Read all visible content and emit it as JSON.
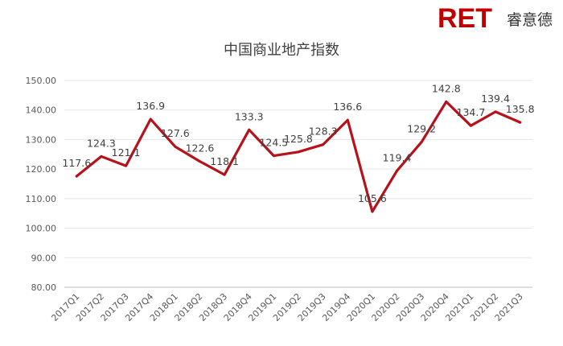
{
  "brand": {
    "logo_text": "RET",
    "logo_cn": "睿意德",
    "color": "#c00000"
  },
  "chart_data": {
    "type": "line",
    "title": "中国商业地产指数",
    "categories": [
      "2017Q1",
      "2017Q2",
      "2017Q3",
      "2017Q4",
      "2018Q1",
      "2018Q2",
      "2018Q3",
      "2018Q4",
      "2019Q1",
      "2019Q2",
      "2019Q3",
      "2019Q4",
      "2020Q1",
      "2020Q2",
      "2020Q3",
      "2020Q4",
      "2021Q1",
      "2021Q2",
      "2021Q3"
    ],
    "series": [
      {
        "values": [
          117.6,
          124.3,
          121.1,
          136.9,
          127.6,
          122.6,
          118.1,
          133.3,
          124.5,
          125.8,
          128.3,
          136.6,
          105.6,
          119.4,
          129.2,
          142.8,
          134.7,
          139.4,
          135.8
        ],
        "data_labels": [
          "117.6",
          "124.3",
          "121.1",
          "136.9",
          "127.6",
          "122.6",
          "118.1",
          "133.3",
          "124.5",
          "125.8",
          "128.3",
          "136.6",
          "105.6",
          "119.4",
          "129.2",
          "142.8",
          "134.7",
          "139.4",
          "135.8"
        ],
        "color": "#b5121b"
      }
    ],
    "ylim": [
      80,
      150
    ],
    "yticks": [
      "80.00",
      "90.00",
      "100.00",
      "110.00",
      "120.00",
      "130.00",
      "140.00",
      "150.00"
    ],
    "grid": true,
    "legend": "none",
    "xlabel": "",
    "ylabel": ""
  }
}
